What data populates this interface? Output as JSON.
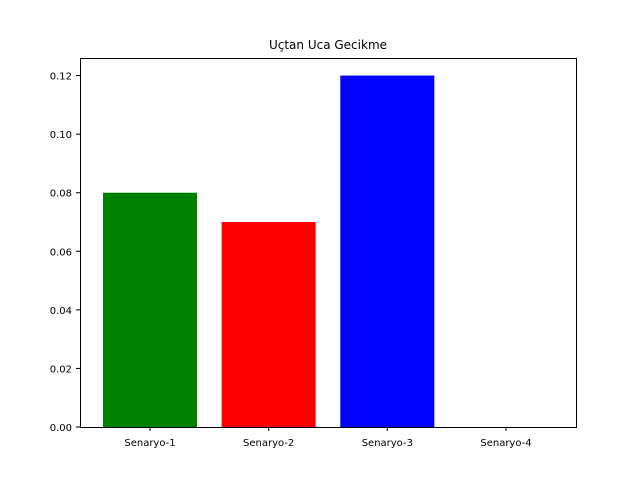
{
  "chart_data": {
    "type": "bar",
    "title": "Uçtan Uca Gecikme",
    "xlabel": "",
    "ylabel": "",
    "categories": [
      "Senaryo-1",
      "Senaryo-2",
      "Senaryo-3",
      "Senaryo-4"
    ],
    "values": [
      0.08,
      0.07,
      0.12,
      0.0
    ],
    "colors": [
      "#008000",
      "#ff0000",
      "#0000ff",
      "#ffff00"
    ],
    "ylim": [
      0,
      0.126
    ],
    "yticks": [
      "0.00",
      "0.02",
      "0.04",
      "0.06",
      "0.08",
      "0.10",
      "0.12"
    ],
    "ytick_values": [
      0,
      0.02,
      0.04,
      0.06,
      0.08,
      0.1,
      0.12
    ],
    "grid": false,
    "legend": "none"
  }
}
